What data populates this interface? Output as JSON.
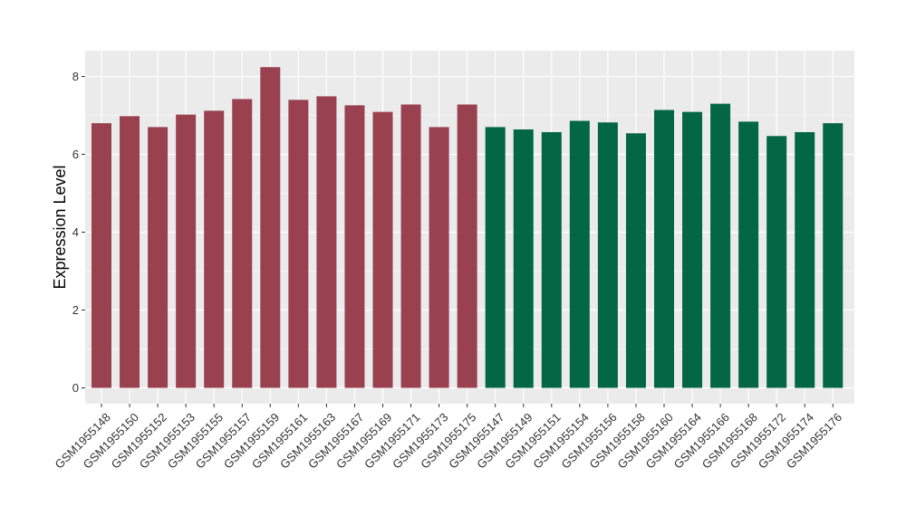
{
  "chart_data": {
    "type": "bar",
    "title": "",
    "xlabel": "",
    "ylabel": "Expression Level",
    "ylim": [
      0,
      8.6
    ],
    "yticks": [
      0,
      2,
      4,
      6,
      8
    ],
    "grid": true,
    "legend": "none",
    "categories": [
      "GSM1955148",
      "GSM1955150",
      "GSM1955152",
      "GSM1955153",
      "GSM1955155",
      "GSM1955157",
      "GSM1955159",
      "GSM1955161",
      "GSM1955163",
      "GSM1955167",
      "GSM1955169",
      "GSM1955171",
      "GSM1955173",
      "GSM1955175",
      "GSM1955147",
      "GSM1955149",
      "GSM1955151",
      "GSM1955154",
      "GSM1955156",
      "GSM1955158",
      "GSM1955160",
      "GSM1955164",
      "GSM1955166",
      "GSM1955168",
      "GSM1955172",
      "GSM1955174",
      "GSM1955176"
    ],
    "values": [
      6.8,
      6.98,
      6.7,
      7.02,
      7.12,
      7.42,
      8.24,
      7.4,
      7.49,
      7.26,
      7.09,
      7.28,
      6.7,
      7.28,
      6.7,
      6.64,
      6.57,
      6.86,
      6.82,
      6.54,
      7.14,
      7.09,
      7.3,
      6.84,
      6.47,
      6.57,
      6.8
    ],
    "group_colors": [
      "#9a4150",
      "#9a4150",
      "#9a4150",
      "#9a4150",
      "#9a4150",
      "#9a4150",
      "#9a4150",
      "#9a4150",
      "#9a4150",
      "#9a4150",
      "#9a4150",
      "#9a4150",
      "#9a4150",
      "#9a4150",
      "#036644",
      "#036644",
      "#036644",
      "#036644",
      "#036644",
      "#036644",
      "#036644",
      "#036644",
      "#036644",
      "#036644",
      "#036644",
      "#036644",
      "#036644"
    ],
    "panel_background": "#ebebeb",
    "grid_color": "#ffffff"
  }
}
